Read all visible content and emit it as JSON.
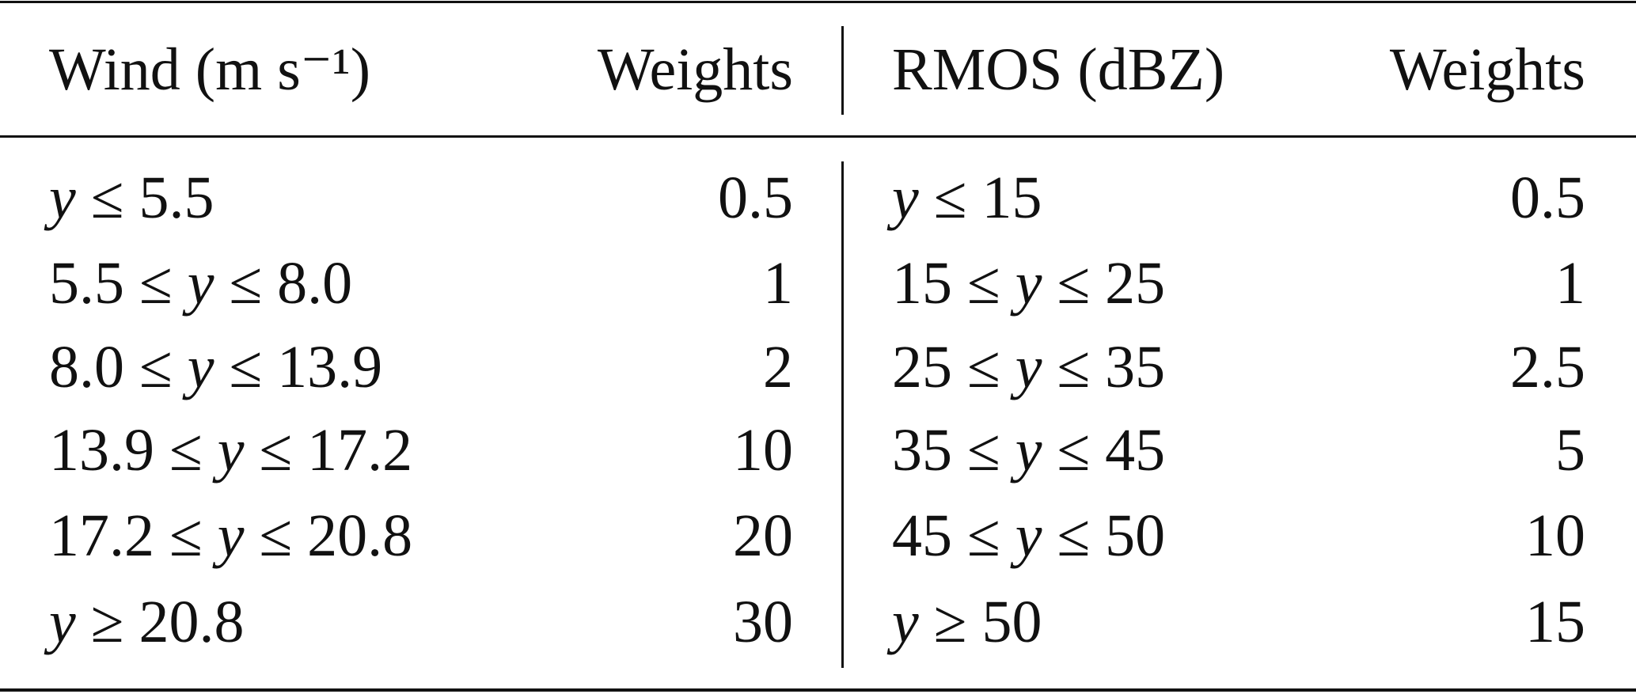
{
  "table": {
    "header": [
      "Wind (m s⁻¹)",
      "Weights",
      "RMOS (dBZ)",
      "Weights"
    ],
    "rows": [
      [
        "y ≤ 5.5",
        0.5,
        "y ≤ 15",
        0.5
      ],
      [
        "5.5 ≤ y ≤ 8.0",
        1,
        "15 ≤ y ≤ 25",
        1
      ],
      [
        "8.0 ≤ y ≤ 13.9",
        2,
        "25 ≤ y ≤ 35",
        2.5
      ],
      [
        "13.9 ≤ y ≤ 17.2",
        10,
        "35 ≤ y ≤ 45",
        5
      ],
      [
        "17.2 ≤ y ≤ 20.8",
        20,
        "45 ≤ y ≤ 50",
        10
      ],
      [
        "y ≥ 20.8",
        30,
        "y ≥ 50",
        15
      ]
    ]
  }
}
